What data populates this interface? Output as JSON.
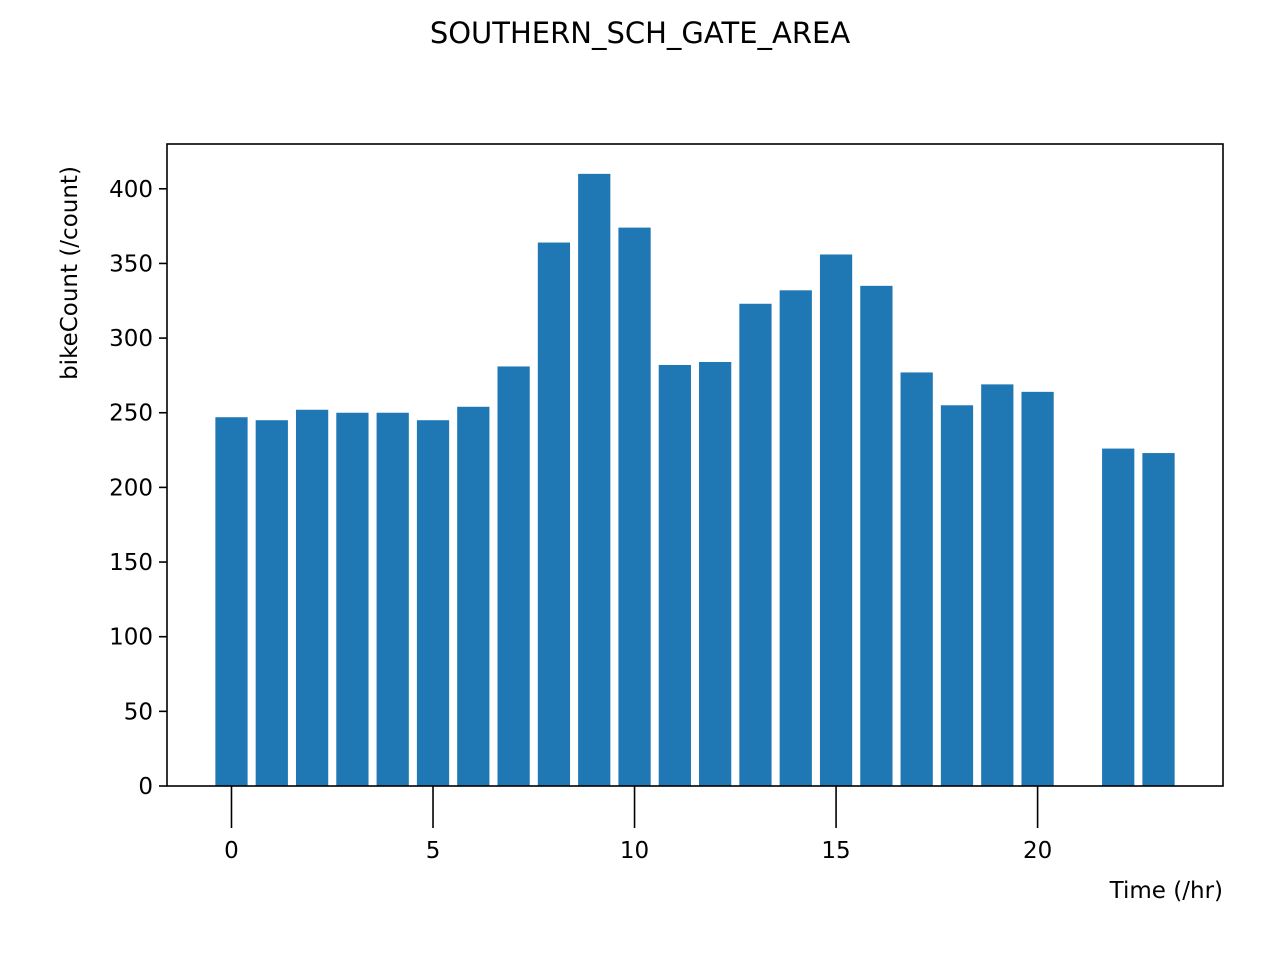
{
  "chart_data": {
    "type": "bar",
    "title": "SOUTHERN_SCH_GATE_AREA",
    "xlabel": "Time (/hr)",
    "ylabel": "bikeCount (/count)",
    "x": [
      0,
      1,
      2,
      3,
      4,
      5,
      6,
      7,
      8,
      9,
      10,
      11,
      12,
      13,
      14,
      15,
      16,
      17,
      18,
      19,
      20,
      22,
      23
    ],
    "values": [
      247,
      245,
      252,
      250,
      250,
      245,
      254,
      281,
      364,
      410,
      374,
      282,
      284,
      323,
      332,
      356,
      335,
      277,
      255,
      269,
      264,
      226,
      223
    ],
    "xlim": [
      -1.6,
      24.6
    ],
    "ylim": [
      0,
      430
    ],
    "xticks": [
      0,
      5,
      10,
      15,
      20
    ],
    "yticks": [
      0,
      50,
      100,
      150,
      200,
      250,
      300,
      350,
      400
    ],
    "bar_color": "#1f77b4",
    "grid": false,
    "legend": "none"
  }
}
